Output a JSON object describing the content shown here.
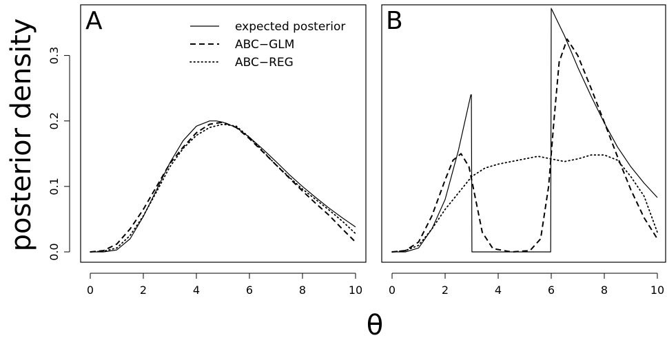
{
  "figure": {
    "ylabel": "posterior density",
    "xlabel": "θ"
  },
  "legend": [
    {
      "label": "expected posterior",
      "style": "solid"
    },
    {
      "label": "ABC−GLM",
      "style": "dashed"
    },
    {
      "label": "ABC−REG",
      "style": "dotted"
    }
  ],
  "chart_data": [
    {
      "type": "line",
      "panel_label": "A",
      "xlim": [
        0,
        10
      ],
      "ylim": [
        0,
        0.37
      ],
      "x_ticks": [
        0,
        2,
        4,
        6,
        8,
        10
      ],
      "y_ticks": [
        0.0,
        0.1,
        0.2,
        0.3
      ],
      "y_tick_labels": [
        "0.0",
        "0.1",
        "0.2",
        "0.3"
      ],
      "series": [
        {
          "name": "expected posterior",
          "style": "solid",
          "x": [
            0,
            0.5,
            1,
            1.5,
            2,
            2.5,
            3,
            3.5,
            4,
            4.5,
            4.75,
            5,
            5.5,
            6,
            6.5,
            7,
            7.5,
            8,
            8.5,
            9,
            9.5,
            10
          ],
          "y": [
            0.0,
            0.0,
            0.003,
            0.02,
            0.054,
            0.095,
            0.136,
            0.17,
            0.192,
            0.2,
            0.2,
            0.198,
            0.19,
            0.175,
            0.157,
            0.138,
            0.118,
            0.1,
            0.083,
            0.067,
            0.052,
            0.038
          ]
        },
        {
          "name": "ABC−GLM",
          "style": "dashed",
          "x": [
            0,
            0.5,
            1,
            1.5,
            2,
            2.5,
            3,
            3.5,
            4,
            4.5,
            5,
            5.5,
            6,
            6.5,
            7,
            7.5,
            8,
            8.5,
            9,
            9.5,
            10
          ],
          "y": [
            0.0,
            0.002,
            0.012,
            0.035,
            0.065,
            0.1,
            0.135,
            0.16,
            0.182,
            0.195,
            0.198,
            0.19,
            0.173,
            0.153,
            0.133,
            0.113,
            0.093,
            0.074,
            0.056,
            0.035,
            0.015
          ]
        },
        {
          "name": "ABC−REG",
          "style": "dotted",
          "x": [
            0,
            0.5,
            1,
            1.5,
            2,
            2.5,
            3,
            3.5,
            4,
            4.5,
            5,
            5.5,
            6,
            6.5,
            7,
            7.5,
            8,
            8.5,
            9,
            9.5,
            10
          ],
          "y": [
            0.0,
            0.001,
            0.006,
            0.025,
            0.055,
            0.092,
            0.13,
            0.158,
            0.178,
            0.19,
            0.195,
            0.192,
            0.175,
            0.154,
            0.133,
            0.114,
            0.096,
            0.08,
            0.064,
            0.047,
            0.028
          ]
        }
      ]
    },
    {
      "type": "line",
      "panel_label": "B",
      "xlim": [
        0,
        10
      ],
      "ylim": [
        0,
        0.37
      ],
      "x_ticks": [
        0,
        2,
        4,
        6,
        8,
        10
      ],
      "series": [
        {
          "name": "expected posterior",
          "style": "solid",
          "x": [
            0,
            0.5,
            1,
            1.5,
            2,
            2.5,
            2.97,
            2.99,
            3.01,
            5.98,
            6.0,
            6.5,
            7,
            7.5,
            8,
            8.5,
            9,
            9.5,
            10
          ],
          "y": [
            0.0,
            0.0,
            0.006,
            0.035,
            0.08,
            0.155,
            0.24,
            0.24,
            0.0,
            0.0,
            0.372,
            0.33,
            0.282,
            0.238,
            0.197,
            0.16,
            0.13,
            0.105,
            0.083
          ]
        },
        {
          "name": "ABC−GLM",
          "style": "dashed",
          "x": [
            0,
            0.5,
            1,
            1.5,
            2,
            2.3,
            2.6,
            2.9,
            3.1,
            3.4,
            3.8,
            4.5,
            5.2,
            5.6,
            5.9,
            6.1,
            6.3,
            6.6,
            7,
            7.5,
            8,
            8.5,
            9,
            9.5,
            10
          ],
          "y": [
            0.0,
            0.002,
            0.015,
            0.055,
            0.11,
            0.14,
            0.15,
            0.13,
            0.09,
            0.03,
            0.005,
            0.0,
            0.002,
            0.02,
            0.1,
            0.2,
            0.29,
            0.325,
            0.3,
            0.25,
            0.198,
            0.145,
            0.095,
            0.052,
            0.02
          ]
        },
        {
          "name": "ABC−REG",
          "style": "dotted",
          "x": [
            0,
            0.5,
            1,
            1.5,
            2,
            2.5,
            3,
            3.5,
            4,
            4.5,
            5,
            5.5,
            6,
            6.5,
            7,
            7.5,
            8,
            8.5,
            9,
            9.5,
            10
          ],
          "y": [
            0.0,
            0.002,
            0.01,
            0.035,
            0.065,
            0.09,
            0.115,
            0.128,
            0.134,
            0.138,
            0.142,
            0.146,
            0.142,
            0.138,
            0.142,
            0.148,
            0.148,
            0.14,
            0.115,
            0.085,
            0.03
          ]
        }
      ]
    }
  ]
}
